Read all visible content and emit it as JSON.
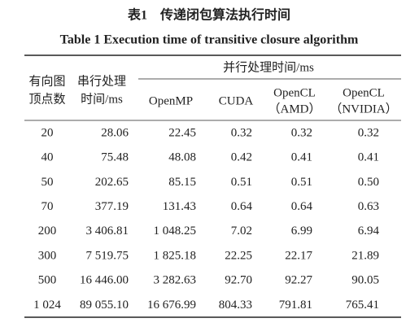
{
  "caption_cn": "表1　传递闭包算法执行时间",
  "caption_en": "Table 1  Execution time of transitive closure algorithm",
  "table": {
    "header": {
      "vertices": [
        "有向图",
        "顶点数"
      ],
      "serial": [
        "串行处理",
        "时间/ms"
      ],
      "parallel": "并行处理时间/ms",
      "sub": [
        [
          "OpenMP"
        ],
        [
          "CUDA"
        ],
        [
          "OpenCL",
          "（AMD）"
        ],
        [
          "OpenCL",
          "（NVIDIA）"
        ]
      ]
    },
    "rows": [
      [
        "20",
        "28.06",
        "22.45",
        "0.32",
        "0.32",
        "0.32"
      ],
      [
        "40",
        "75.48",
        "48.08",
        "0.42",
        "0.41",
        "0.41"
      ],
      [
        "50",
        "202.65",
        "85.15",
        "0.51",
        "0.51",
        "0.50"
      ],
      [
        "70",
        "377.19",
        "131.43",
        "0.64",
        "0.64",
        "0.63"
      ],
      [
        "200",
        "3 406.81",
        "1 048.25",
        "7.02",
        "6.99",
        "6.94"
      ],
      [
        "300",
        "7 519.75",
        "1 825.18",
        "22.25",
        "22.17",
        "21.89"
      ],
      [
        "500",
        "16 446.00",
        "3 282.63",
        "92.70",
        "92.27",
        "90.05"
      ],
      [
        "1 024",
        "89 055.10",
        "16 676.99",
        "804.33",
        "791.81",
        "765.41"
      ]
    ]
  }
}
